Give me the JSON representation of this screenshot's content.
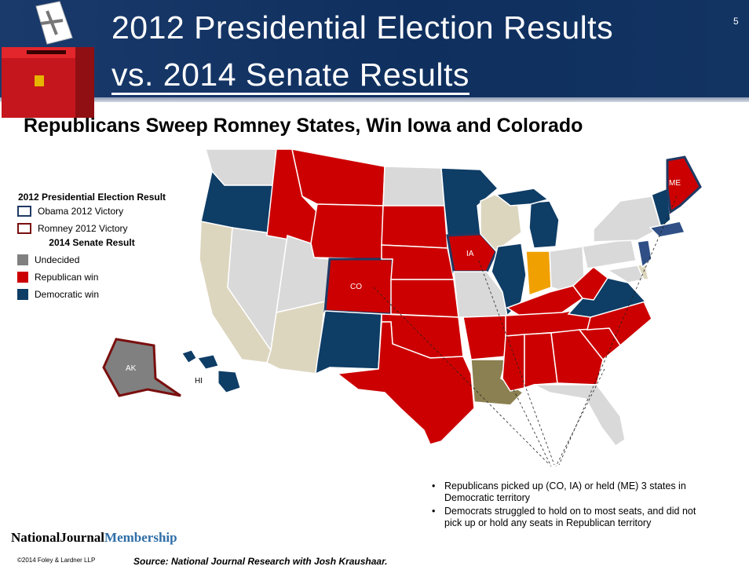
{
  "slide": {
    "title_line1": "2012 Presidential Election Results",
    "title_line2": "vs. 2014 Senate Results",
    "page_number": "5",
    "subtitle": "Republicans Sweep Romney States, Win Iowa and Colorado"
  },
  "legend": {
    "heading_2012": "2012 Presidential Election Result",
    "obama": "Obama 2012 Victory",
    "romney": "Romney 2012 Victory",
    "heading_2014": "2014 Senate Result",
    "undecided": "Undecided",
    "republican": "Republican win",
    "democratic": "Democratic win"
  },
  "colors": {
    "republican": "#cc0000",
    "democratic": "#0e3d66",
    "undecided": "#808080",
    "no_race": "#d9d9d9",
    "tan": "#ddd6bf",
    "olive": "#8b8051",
    "orange": "#f0a000",
    "obama_outline": "#1f3a64",
    "romney_outline": "#7a0f0f"
  },
  "map_labels": {
    "co": "CO",
    "ia": "IA",
    "me": "ME",
    "ak": "AK",
    "hi": "HI"
  },
  "notes": [
    "Republicans picked up (CO, IA) or held (ME) 3 states in Democratic territory",
    "Democrats struggled to hold on to most seats, and did not pick up or hold any seats in Republican territory"
  ],
  "footer": {
    "brand_part1": "NationalJournal",
    "brand_part2": "Membership",
    "copyright": "©2014 Foley & Lardner LLP",
    "source": "Source: National Journal Research with Josh Kraushaar."
  }
}
